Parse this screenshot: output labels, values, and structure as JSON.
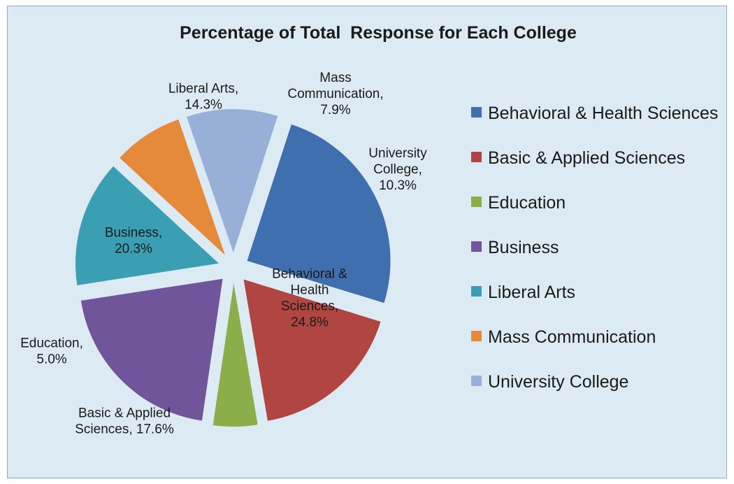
{
  "chart_data": {
    "type": "pie",
    "title": "Percentage of Total  Response for Each College",
    "slices": [
      {
        "name": "Behavioral & Health Sciences",
        "value": 24.8,
        "color": "#3f6fae",
        "label": [
          "Behavioral &",
          "Health",
          "Sciences,",
          "24.8%"
        ]
      },
      {
        "name": "Basic & Applied Sciences",
        "value": 17.6,
        "color": "#b04541",
        "label": [
          "Basic & Applied",
          "Sciences, 17.6%"
        ]
      },
      {
        "name": "Education",
        "value": 5.0,
        "color": "#8cae4a",
        "label": [
          "Education,",
          "5.0%"
        ]
      },
      {
        "name": "Business",
        "value": 20.3,
        "color": "#71559a",
        "label": [
          "Business,",
          "20.3%"
        ]
      },
      {
        "name": "Liberal Arts",
        "value": 14.3,
        "color": "#3a9fb3",
        "label": [
          "Liberal Arts,",
          "14.3%"
        ]
      },
      {
        "name": "Mass Communication",
        "value": 7.9,
        "color": "#e58a3a",
        "label": [
          "Mass",
          "Communication,",
          "7.9%"
        ]
      },
      {
        "name": "University College",
        "value": 10.3,
        "color": "#98b0d8",
        "label": [
          "University",
          "College,",
          "10.3%"
        ]
      }
    ],
    "legend_position": "right",
    "exploded": true
  }
}
